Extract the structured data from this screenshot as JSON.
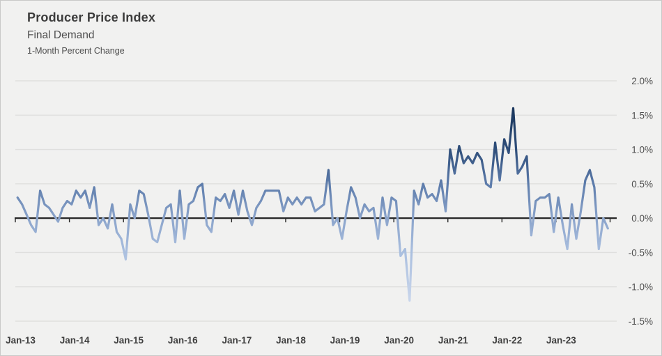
{
  "header": {
    "title": "Producer Price Index",
    "subtitle": "Final Demand",
    "caption": "1-Month Percent Change"
  },
  "chart_data": {
    "type": "line",
    "title": "Producer Price Index",
    "subtitle": "Final Demand",
    "ylabel": "1-Month Percent Change",
    "unit": "percent",
    "frequency": "monthly",
    "start_month": "Jan-2013",
    "end_month": "Dec-2023",
    "ylim": [
      -1.5,
      2.0
    ],
    "y_step": 0.5,
    "grid": true,
    "legend": "none",
    "y_tick_labels": [
      "2.0%",
      "1.5%",
      "1.0%",
      "0.5%",
      "0.0%",
      "-0.5%",
      "-1.0%",
      "-1.5%"
    ],
    "y_tick_values": [
      2.0,
      1.5,
      1.0,
      0.5,
      0.0,
      -0.5,
      -1.0,
      -1.5
    ],
    "x_tick_labels": [
      "Jan-13",
      "Jan-14",
      "Jan-15",
      "Jan-16",
      "Jan-17",
      "Jan-18",
      "Jan-19",
      "Jan-20",
      "Jan-21",
      "Jan-22",
      "Jan-23"
    ],
    "values": [
      0.3,
      0.2,
      0.05,
      -0.1,
      -0.2,
      0.4,
      0.2,
      0.15,
      0.05,
      -0.05,
      0.15,
      0.25,
      0.2,
      0.4,
      0.3,
      0.4,
      0.15,
      0.45,
      -0.1,
      0.0,
      -0.15,
      0.2,
      -0.2,
      -0.3,
      -0.6,
      0.2,
      0.0,
      0.4,
      0.35,
      0.05,
      -0.3,
      -0.35,
      -0.1,
      0.15,
      0.2,
      -0.35,
      0.4,
      -0.3,
      0.2,
      0.25,
      0.45,
      0.5,
      -0.1,
      -0.2,
      0.3,
      0.25,
      0.35,
      0.15,
      0.4,
      0.05,
      0.4,
      0.1,
      -0.1,
      0.15,
      0.25,
      0.4,
      0.4,
      0.4,
      0.4,
      0.1,
      0.3,
      0.2,
      0.3,
      0.2,
      0.3,
      0.3,
      0.1,
      0.15,
      0.2,
      0.7,
      -0.1,
      0.0,
      -0.3,
      0.1,
      0.45,
      0.3,
      0.0,
      0.2,
      0.1,
      0.15,
      -0.3,
      0.3,
      -0.1,
      0.3,
      0.25,
      -0.55,
      -0.45,
      -1.2,
      0.4,
      0.2,
      0.5,
      0.3,
      0.35,
      0.25,
      0.55,
      0.1,
      1.0,
      0.65,
      1.05,
      0.8,
      0.9,
      0.8,
      0.95,
      0.85,
      0.5,
      0.45,
      1.1,
      0.55,
      1.15,
      0.95,
      1.6,
      0.65,
      0.75,
      0.9,
      -0.25,
      0.25,
      0.3,
      0.3,
      0.35,
      -0.2,
      0.3,
      -0.1,
      -0.45,
      0.2,
      -0.3,
      0.1,
      0.55,
      0.7,
      0.45,
      -0.45,
      0.0,
      -0.15
    ],
    "colors": {
      "background": "#f1f1f0",
      "gridline": "#dfdfde",
      "zero_axis": "#262626",
      "y_label": "#4f4f4f",
      "x_label": "#3f3f3f",
      "line_gradient_stops": [
        {
          "offset": 0.0,
          "color": "#132c4e"
        },
        {
          "offset": 0.143,
          "color": "#1d3a61"
        },
        {
          "offset": 0.286,
          "color": "#2f4e7a"
        },
        {
          "offset": 0.429,
          "color": "#5d7cab"
        },
        {
          "offset": 0.571,
          "color": "#8ba4cb"
        },
        {
          "offset": 0.714,
          "color": "#aabfdf"
        },
        {
          "offset": 0.857,
          "color": "#c1d0e8"
        },
        {
          "offset": 1.0,
          "color": "#d2dcef"
        }
      ]
    }
  }
}
